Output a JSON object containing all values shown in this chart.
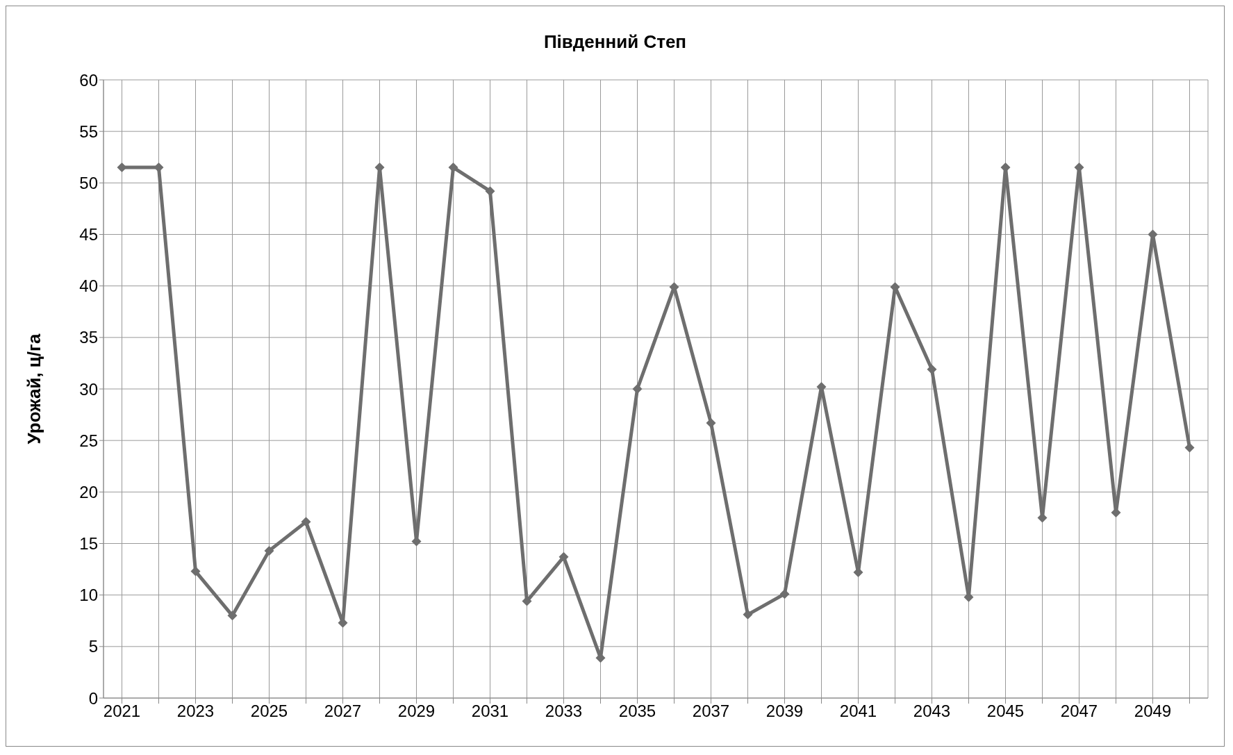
{
  "chart_data": {
    "type": "line",
    "title": "Південний Степ",
    "ylabel": "Урожай, ц/га",
    "categories": [
      "2021",
      null,
      "2023",
      null,
      "2025",
      null,
      "2027",
      null,
      "2029",
      null,
      "2031",
      null,
      "2033",
      null,
      "2035",
      null,
      "2037",
      null,
      "2039",
      null,
      "2041",
      null,
      "2043",
      null,
      "2045",
      null,
      "2047",
      null,
      "2049",
      null
    ],
    "series": [
      {
        "color": "#6e6e6e",
        "values": [
          51.5,
          51.5,
          12.3,
          8.0,
          14.3,
          17.1,
          7.3,
          51.5,
          15.2,
          51.5,
          49.2,
          9.4,
          13.7,
          3.9,
          30.0,
          39.9,
          26.7,
          8.1,
          10.1,
          30.2,
          12.2,
          39.9,
          31.9,
          9.8,
          51.5,
          17.5,
          51.5,
          18.0,
          45.0,
          24.3
        ]
      }
    ],
    "ylim": [
      0,
      60
    ],
    "yticks": [
      0,
      5,
      10,
      15,
      20,
      25,
      30,
      35,
      40,
      45,
      50,
      55,
      60
    ],
    "grid": true,
    "legend": false,
    "marker": "diamond",
    "line_style": "solid"
  }
}
